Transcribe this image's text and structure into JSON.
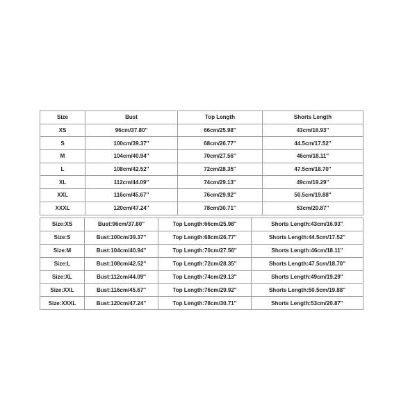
{
  "table1": {
    "headers": [
      "Size",
      "Bust",
      "Top Length",
      "Shorts Length"
    ],
    "rows": [
      [
        "XS",
        "96cm/37.80''",
        "66cm/25.98''",
        "43cm/16.93''"
      ],
      [
        "S",
        "100cm/39.37''",
        "68cm/26.77''",
        "44.5cm/17.52''"
      ],
      [
        "M",
        "104cm/40.94''",
        "70cm/27.56''",
        "46cm/18.11''"
      ],
      [
        "L",
        "108cm/42.52''",
        "72cm/28.35''",
        "47.5cm/18.70''"
      ],
      [
        "XL",
        "112cm/44.09''",
        "74cm/29.13''",
        "49cm/19.29''"
      ],
      [
        "XXL",
        "116cm/45.67''",
        "76cm/29.92''",
        "50.5cm/19.88''"
      ],
      [
        "XXXL",
        "120cm/47.24''",
        "78cm/30.71''",
        "53cm/20.87''"
      ]
    ]
  },
  "table2": {
    "rows": [
      [
        "Size:XS",
        "Bust:96cm/37.80''",
        "Top Length:66cm/25.98''",
        "Shorts Length:43cm/16.93''"
      ],
      [
        "Size:S",
        "Bust:100cm/39.37''",
        "Top Length:68cm/26.77''",
        "Shorts Length:44.5cm/17.52''"
      ],
      [
        "Size:M",
        "Bust:104cm/40.94''",
        "Top Length:70cm/27.56''",
        "Shorts Length:46cm/18.11''"
      ],
      [
        "Size:L",
        "Bust:108cm/42.52''",
        "Top Length:72cm/28.35''",
        "Shorts Length:47.5cm/18.70''"
      ],
      [
        "Size:XL",
        "Bust:112cm/44.09''",
        "Top Length:74cm/29.13''",
        "Shorts Length:49cm/19.29''"
      ],
      [
        "Size:XXL",
        "Bust:116cm/45.67''",
        "Top Length:76cm/29.92''",
        "Shorts Length:50.5cm/19.88''"
      ],
      [
        "Size:XXXL",
        "Bust:120cm/47.24''",
        "Top Length:78cm/30.71''",
        "Shorts Length:53cm/20.87''"
      ]
    ]
  }
}
